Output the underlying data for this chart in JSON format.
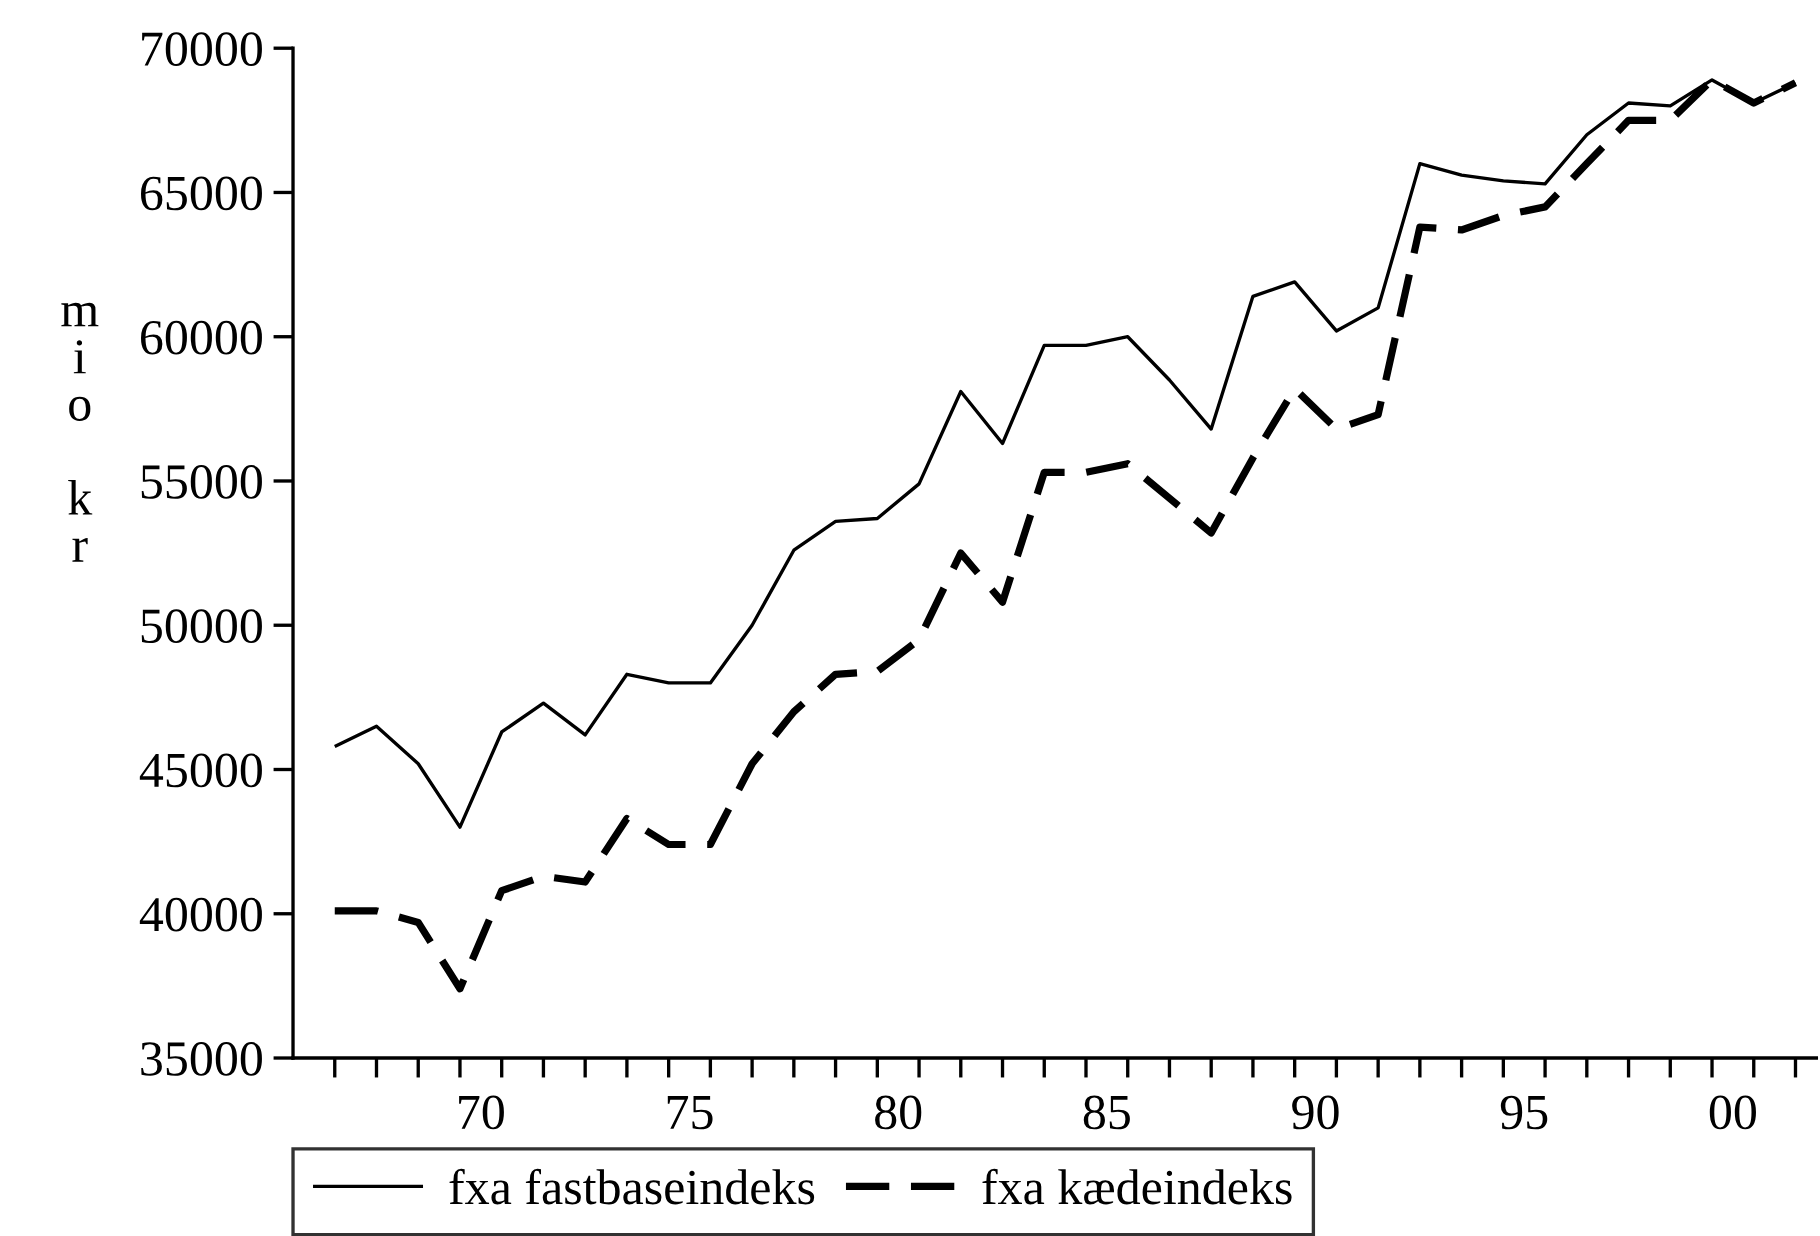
{
  "chart_data": {
    "type": "line",
    "ylabel": "mio kr",
    "x": [
      1966.5,
      1967.5,
      1968.5,
      1969.5,
      1970.5,
      1971.5,
      1972.5,
      1973.5,
      1974.5,
      1975.5,
      1976.5,
      1977.5,
      1978.5,
      1979.5,
      1980.5,
      1981.5,
      1982.5,
      1983.5,
      1984.5,
      1985.5,
      1986.5,
      1987.5,
      1988.5,
      1989.5,
      1990.5,
      1991.5,
      1992.5,
      1993.5,
      1994.5,
      1995.5,
      1996.5,
      1997.5,
      1998.5,
      1999.5,
      2000.5,
      2001.5
    ],
    "series": [
      {
        "name": "fxa fastbaseindeks",
        "color": "#000000",
        "line_style": "solid",
        "values": [
          45800,
          46500,
          45200,
          43000,
          46300,
          47300,
          46200,
          48300,
          48000,
          48000,
          50000,
          52600,
          53600,
          53700,
          54900,
          58100,
          56300,
          59700,
          59700,
          60000,
          58500,
          56800,
          61400,
          61900,
          60200,
          61000,
          66000,
          65600,
          65400,
          65300,
          67000,
          68100,
          68000,
          68900,
          68100,
          68800
        ]
      },
      {
        "name": "fxa kædeindeks",
        "color": "#000000",
        "line_style": "dashed",
        "values": [
          40100,
          40100,
          39700,
          37400,
          40800,
          41300,
          41100,
          43300,
          42400,
          42400,
          45200,
          47000,
          48300,
          48400,
          49500,
          52500,
          50800,
          55300,
          55300,
          55600,
          54400,
          53200,
          55800,
          58200,
          56800,
          57300,
          63800,
          63700,
          64200,
          64500,
          66000,
          67500,
          67500,
          68900,
          68100,
          68800
        ]
      }
    ],
    "xlim": [
      1965.5,
      2002
    ],
    "xticks": [
      {
        "value": 1966.5,
        "label": null
      },
      {
        "value": 1967.5,
        "label": null
      },
      {
        "value": 1968.5,
        "label": null
      },
      {
        "value": 1969.5,
        "label": null
      },
      {
        "value": 1970,
        "label": "70"
      },
      {
        "value": 1970.5,
        "label": null
      },
      {
        "value": 1971.5,
        "label": null
      },
      {
        "value": 1972.5,
        "label": null
      },
      {
        "value": 1973.5,
        "label": null
      },
      {
        "value": 1974.5,
        "label": null
      },
      {
        "value": 1975,
        "label": "75"
      },
      {
        "value": 1975.5,
        "label": null
      },
      {
        "value": 1976.5,
        "label": null
      },
      {
        "value": 1977.5,
        "label": null
      },
      {
        "value": 1978.5,
        "label": null
      },
      {
        "value": 1979.5,
        "label": null
      },
      {
        "value": 1980,
        "label": "80"
      },
      {
        "value": 1980.5,
        "label": null
      },
      {
        "value": 1981.5,
        "label": null
      },
      {
        "value": 1982.5,
        "label": null
      },
      {
        "value": 1983.5,
        "label": null
      },
      {
        "value": 1984.5,
        "label": null
      },
      {
        "value": 1985,
        "label": "85"
      },
      {
        "value": 1985.5,
        "label": null
      },
      {
        "value": 1986.5,
        "label": null
      },
      {
        "value": 1987.5,
        "label": null
      },
      {
        "value": 1988.5,
        "label": null
      },
      {
        "value": 1989.5,
        "label": null
      },
      {
        "value": 1990,
        "label": "90"
      },
      {
        "value": 1990.5,
        "label": null
      },
      {
        "value": 1991.5,
        "label": null
      },
      {
        "value": 1992.5,
        "label": null
      },
      {
        "value": 1993.5,
        "label": null
      },
      {
        "value": 1994.5,
        "label": null
      },
      {
        "value": 1995,
        "label": "95"
      },
      {
        "value": 1995.5,
        "label": null
      },
      {
        "value": 1996.5,
        "label": null
      },
      {
        "value": 1997.5,
        "label": null
      },
      {
        "value": 1998.5,
        "label": null
      },
      {
        "value": 1999.5,
        "label": null
      },
      {
        "value": 2000,
        "label": "00"
      },
      {
        "value": 2000.5,
        "label": null
      },
      {
        "value": 2001.5,
        "label": null
      }
    ],
    "ylim": [
      35000,
      70000
    ],
    "yticks": [
      35000,
      40000,
      45000,
      50000,
      55000,
      60000,
      65000,
      70000
    ],
    "grid": false,
    "legend": "bottom",
    "marker": "none"
  }
}
